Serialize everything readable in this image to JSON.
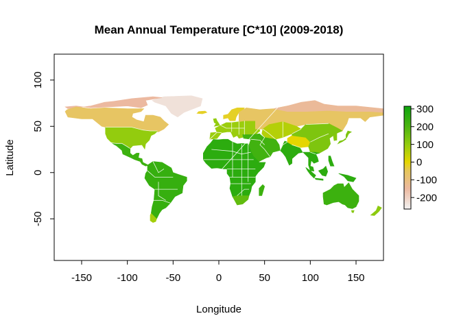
{
  "title": "Mean Annual Temperature [C*10] (2009-2018)",
  "chart_data": {
    "type": "heatmap",
    "title": "Mean Annual Temperature [C*10] (2009-2018)",
    "xlabel": "Longitude",
    "ylabel": "Latitude",
    "xlim": [
      -180,
      180
    ],
    "ylim": [
      -95,
      128
    ],
    "x_ticks": [
      -150,
      -100,
      -50,
      0,
      50,
      100,
      150
    ],
    "y_ticks": [
      -50,
      0,
      50,
      100
    ],
    "legend": {
      "placement": "right",
      "ticks": [
        300,
        200,
        100,
        0,
        -100,
        -200
      ],
      "range": [
        -265,
        315
      ],
      "colors": [
        {
          "value": -265,
          "color": "#f2f2f2"
        },
        {
          "value": -150,
          "color": "#ecb9a0"
        },
        {
          "value": -50,
          "color": "#e6c65c"
        },
        {
          "value": 0,
          "color": "#e5d600"
        },
        {
          "value": 100,
          "color": "#93cc0e"
        },
        {
          "value": 200,
          "color": "#4cb510"
        },
        {
          "value": 315,
          "color": "#0ea40e"
        }
      ]
    },
    "regions": [
      {
        "name": "greenland",
        "mean": -230
      },
      {
        "name": "canada-north",
        "mean": -150
      },
      {
        "name": "canada",
        "mean": -60
      },
      {
        "name": "usa",
        "mean": 100
      },
      {
        "name": "mexico-central-america",
        "mean": 230
      },
      {
        "name": "south-america",
        "mean": 240
      },
      {
        "name": "patagonia",
        "mean": 80
      },
      {
        "name": "europe",
        "mean": 90
      },
      {
        "name": "scandinavia",
        "mean": -20
      },
      {
        "name": "russia",
        "mean": -60
      },
      {
        "name": "siberia-north",
        "mean": -140
      },
      {
        "name": "central-asia",
        "mean": 60
      },
      {
        "name": "tibet",
        "mean": 0
      },
      {
        "name": "china",
        "mean": 130
      },
      {
        "name": "middle-east",
        "mean": 220
      },
      {
        "name": "india",
        "mean": 260
      },
      {
        "name": "southeast-asia",
        "mean": 260
      },
      {
        "name": "indonesia",
        "mean": 260
      },
      {
        "name": "africa",
        "mean": 260
      },
      {
        "name": "south-africa",
        "mean": 170
      },
      {
        "name": "madagascar",
        "mean": 230
      },
      {
        "name": "australia",
        "mean": 230
      },
      {
        "name": "tasmania",
        "mean": 120
      },
      {
        "name": "new-zealand",
        "mean": 110
      },
      {
        "name": "japan",
        "mean": 130
      }
    ]
  },
  "colors": {
    "background": "#ffffff",
    "axis": "#000000",
    "borders": "#ffffff"
  }
}
